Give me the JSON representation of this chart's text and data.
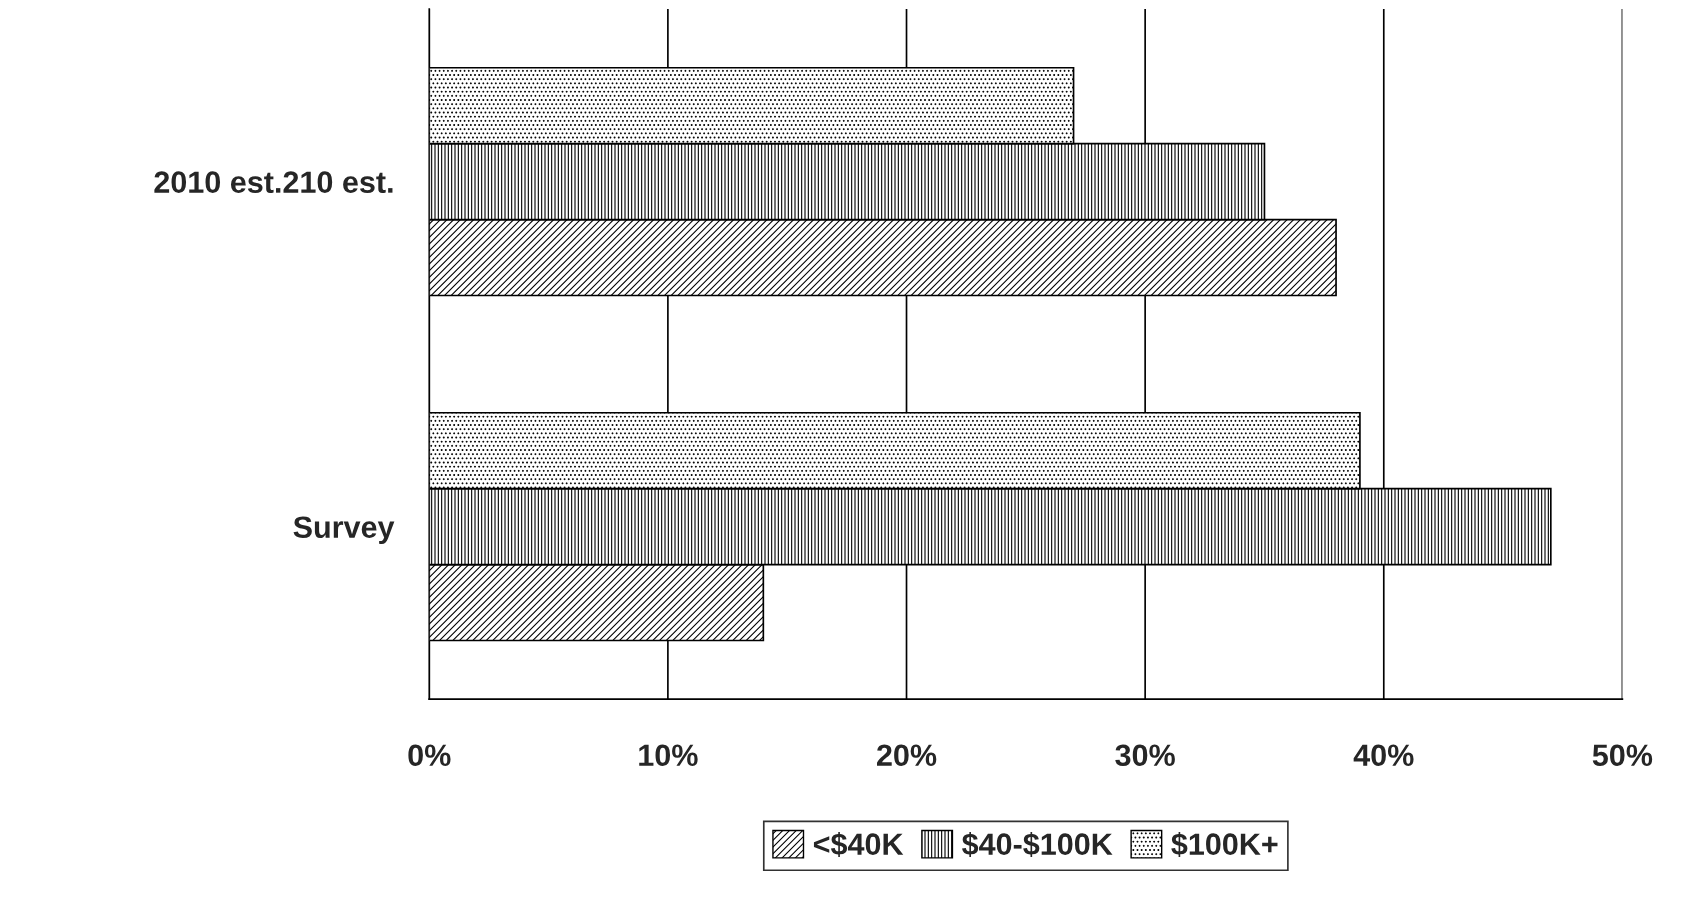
{
  "chart_data": {
    "type": "bar",
    "orientation": "horizontal",
    "categories": [
      "2010 est.210 est.",
      "Survey"
    ],
    "series": [
      {
        "name": "<$40K",
        "color": "#000000",
        "values": [
          38,
          14
        ]
      },
      {
        "name": "$40-$100K",
        "color": "#000000",
        "values": [
          35,
          47
        ]
      },
      {
        "name": "$100K+",
        "color": "#000000",
        "values": [
          27,
          39
        ]
      }
    ],
    "xlim": [
      0,
      50
    ],
    "xticks": [
      {
        "value": 0,
        "label": "0%"
      },
      {
        "value": 10,
        "label": "10%"
      },
      {
        "value": 20,
        "label": "20%"
      },
      {
        "value": 30,
        "label": "30%"
      },
      {
        "value": 40,
        "label": "40%"
      },
      {
        "value": 50,
        "label": "50%"
      }
    ],
    "grid": "x",
    "legend": "bottom"
  }
}
